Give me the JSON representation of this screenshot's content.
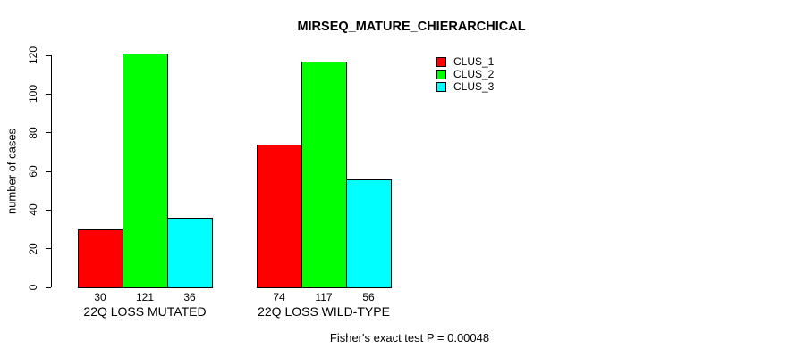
{
  "title": "MIRSEQ_MATURE_CHIERARCHICAL",
  "footer": "Fisher's exact test P = 0.00048",
  "chart_data": {
    "type": "bar",
    "title": "MIRSEQ_MATURE_CHIERARCHICAL",
    "xlabel": "",
    "ylabel": "number of cases",
    "ylim": [
      0,
      120
    ],
    "yticks": [
      0,
      20,
      40,
      60,
      80,
      100,
      120
    ],
    "grid": false,
    "legend_position": "top-right",
    "categories": [
      "22Q LOSS MUTATED",
      "22Q LOSS WILD-TYPE"
    ],
    "series": [
      {
        "name": "CLUS_1",
        "color": "#ff0000",
        "values": [
          30,
          74
        ]
      },
      {
        "name": "CLUS_2",
        "color": "#00ff00",
        "values": [
          121,
          117
        ]
      },
      {
        "name": "CLUS_3",
        "color": "#00ffff",
        "values": [
          36,
          56
        ]
      }
    ],
    "bar_value_labels": [
      [
        30,
        121,
        36
      ],
      [
        74,
        117,
        56
      ]
    ],
    "annotation": "Fisher's exact test P = 0.00048"
  }
}
